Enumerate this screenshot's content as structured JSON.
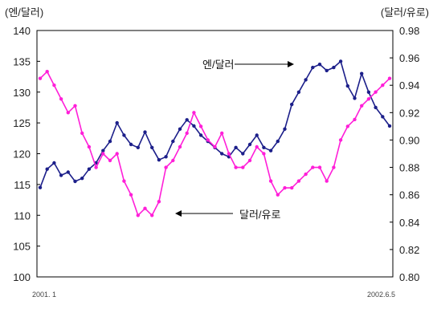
{
  "chart_data": {
    "type": "line",
    "left_axis": {
      "unit_label": "(엔/달러)",
      "ticks": [
        "140",
        "135",
        "130",
        "125",
        "120",
        "115",
        "110",
        "105",
        "100"
      ],
      "range": [
        100,
        140
      ]
    },
    "right_axis": {
      "unit_label": "(달러/유로)",
      "ticks": [
        "0.98",
        "0.96",
        "0.94",
        "0.92",
        "0.90",
        "0.88",
        "0.86",
        "0.84",
        "0.82",
        "0.80"
      ],
      "range": [
        0.8,
        0.98
      ]
    },
    "x_labels": {
      "start": "2001. 1",
      "end": "2002.6.5"
    },
    "annotations": {
      "yen": "엔/달러",
      "euro": "달러/유로"
    },
    "grid": false,
    "colors": {
      "yen": "#1c1f8a",
      "euro": "#ff1fd8"
    },
    "series": [
      {
        "name": "엔/달러",
        "axis": "left",
        "color": "#1c1f8a",
        "x": [
          0,
          2,
          4,
          6,
          8,
          10,
          12,
          14,
          16,
          18,
          20,
          22,
          24,
          26,
          28,
          30,
          32,
          34,
          36,
          38,
          40,
          42,
          44,
          46,
          48,
          50,
          52,
          54,
          56,
          58,
          60,
          62,
          64,
          66,
          68,
          70,
          72,
          74,
          76,
          78,
          80,
          82,
          84,
          86,
          88,
          90,
          92,
          94,
          96,
          98,
          100
        ],
        "y": [
          114.5,
          117.5,
          118.5,
          116.5,
          117.0,
          115.5,
          116.0,
          117.5,
          118.5,
          120.5,
          122.0,
          125.0,
          123.0,
          121.5,
          121.0,
          123.5,
          121.0,
          119.0,
          119.5,
          122.0,
          124.0,
          125.5,
          124.5,
          123.0,
          122.0,
          121.0,
          120.0,
          119.5,
          121.0,
          120.0,
          121.5,
          123.0,
          121.0,
          120.5,
          122.0,
          124.0,
          128.0,
          130.0,
          132.0,
          134.0,
          134.5,
          133.5,
          134.0,
          135.0,
          131.0,
          129.0,
          133.0,
          130.0,
          127.5,
          126.0,
          124.5
        ]
      },
      {
        "name": "달러/유로",
        "axis": "right",
        "color": "#ff1fd8",
        "x": [
          0,
          2,
          4,
          6,
          8,
          10,
          12,
          14,
          16,
          18,
          20,
          22,
          24,
          26,
          28,
          30,
          32,
          34,
          36,
          38,
          40,
          42,
          44,
          46,
          48,
          50,
          52,
          54,
          56,
          58,
          60,
          62,
          64,
          66,
          68,
          70,
          72,
          74,
          76,
          78,
          80,
          82,
          84,
          86,
          88,
          90,
          92,
          94,
          96,
          98,
          100
        ],
        "y": [
          0.945,
          0.95,
          0.94,
          0.93,
          0.92,
          0.925,
          0.905,
          0.895,
          0.88,
          0.89,
          0.885,
          0.89,
          0.87,
          0.86,
          0.845,
          0.85,
          0.845,
          0.855,
          0.88,
          0.885,
          0.895,
          0.905,
          0.92,
          0.91,
          0.9,
          0.895,
          0.905,
          0.89,
          0.88,
          0.88,
          0.885,
          0.895,
          0.89,
          0.87,
          0.86,
          0.865,
          0.865,
          0.87,
          0.875,
          0.88,
          0.88,
          0.87,
          0.88,
          0.9,
          0.91,
          0.915,
          0.925,
          0.93,
          0.935,
          0.94,
          0.945
        ]
      }
    ]
  }
}
